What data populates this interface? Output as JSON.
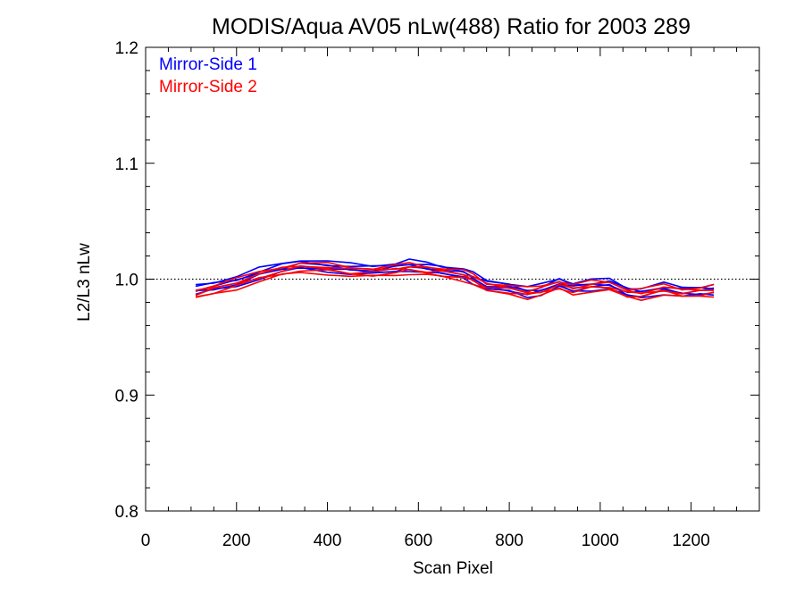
{
  "chart_data": {
    "type": "line",
    "title": "MODIS/Aqua AV05 nLw(488) Ratio for 2003 289",
    "xlabel": "Scan Pixel",
    "ylabel": "L2/L3 nLw",
    "xlim": [
      0,
      1350
    ],
    "ylim": [
      0.8,
      1.2
    ],
    "x_ticks": [
      0,
      200,
      400,
      600,
      800,
      1000,
      1200
    ],
    "x_tick_labels": [
      "0",
      "200",
      "400",
      "600",
      "800",
      "1000",
      "1200"
    ],
    "y_ticks": [
      0.8,
      0.9,
      1.0,
      1.1,
      1.2
    ],
    "y_tick_labels": [
      "0.8",
      "0.9",
      "1.0",
      "1.1",
      "1.2"
    ],
    "reference_line": {
      "y": 1.0,
      "style": "dotted"
    },
    "legend": {
      "placement": "top-left"
    },
    "colors": {
      "mirror_side_1": "#0000ff",
      "mirror_side_2": "#ff0000"
    },
    "series": [
      {
        "name": "Mirror-Side 1",
        "color": "#0000ff",
        "x": [
          110,
          150,
          200,
          250,
          300,
          340,
          400,
          450,
          500,
          550,
          580,
          620,
          650,
          700,
          720,
          750,
          800,
          840,
          870,
          910,
          940,
          980,
          1020,
          1060,
          1090,
          1140,
          1180,
          1220,
          1250
        ],
        "y": [
          0.991,
          0.994,
          0.998,
          1.005,
          1.01,
          1.013,
          1.011,
          1.009,
          1.008,
          1.01,
          1.012,
          1.01,
          1.008,
          1.005,
          1.001,
          0.995,
          0.993,
          0.989,
          0.991,
          0.997,
          0.993,
          0.995,
          0.996,
          0.989,
          0.988,
          0.992,
          0.989,
          0.99,
          0.991
        ]
      },
      {
        "name": "Mirror-Side 2",
        "color": "#ff0000",
        "x": [
          110,
          150,
          200,
          250,
          300,
          340,
          400,
          450,
          500,
          550,
          580,
          620,
          650,
          700,
          720,
          750,
          800,
          840,
          870,
          910,
          940,
          980,
          1020,
          1060,
          1090,
          1140,
          1180,
          1220,
          1250
        ],
        "y": [
          0.987,
          0.991,
          0.996,
          1.002,
          1.007,
          1.01,
          1.009,
          1.006,
          1.006,
          1.008,
          1.009,
          1.007,
          1.006,
          1.003,
          1.0,
          0.993,
          0.991,
          0.988,
          0.99,
          0.995,
          0.991,
          0.994,
          0.994,
          0.988,
          0.987,
          0.991,
          0.988,
          0.989,
          0.99
        ]
      }
    ]
  }
}
